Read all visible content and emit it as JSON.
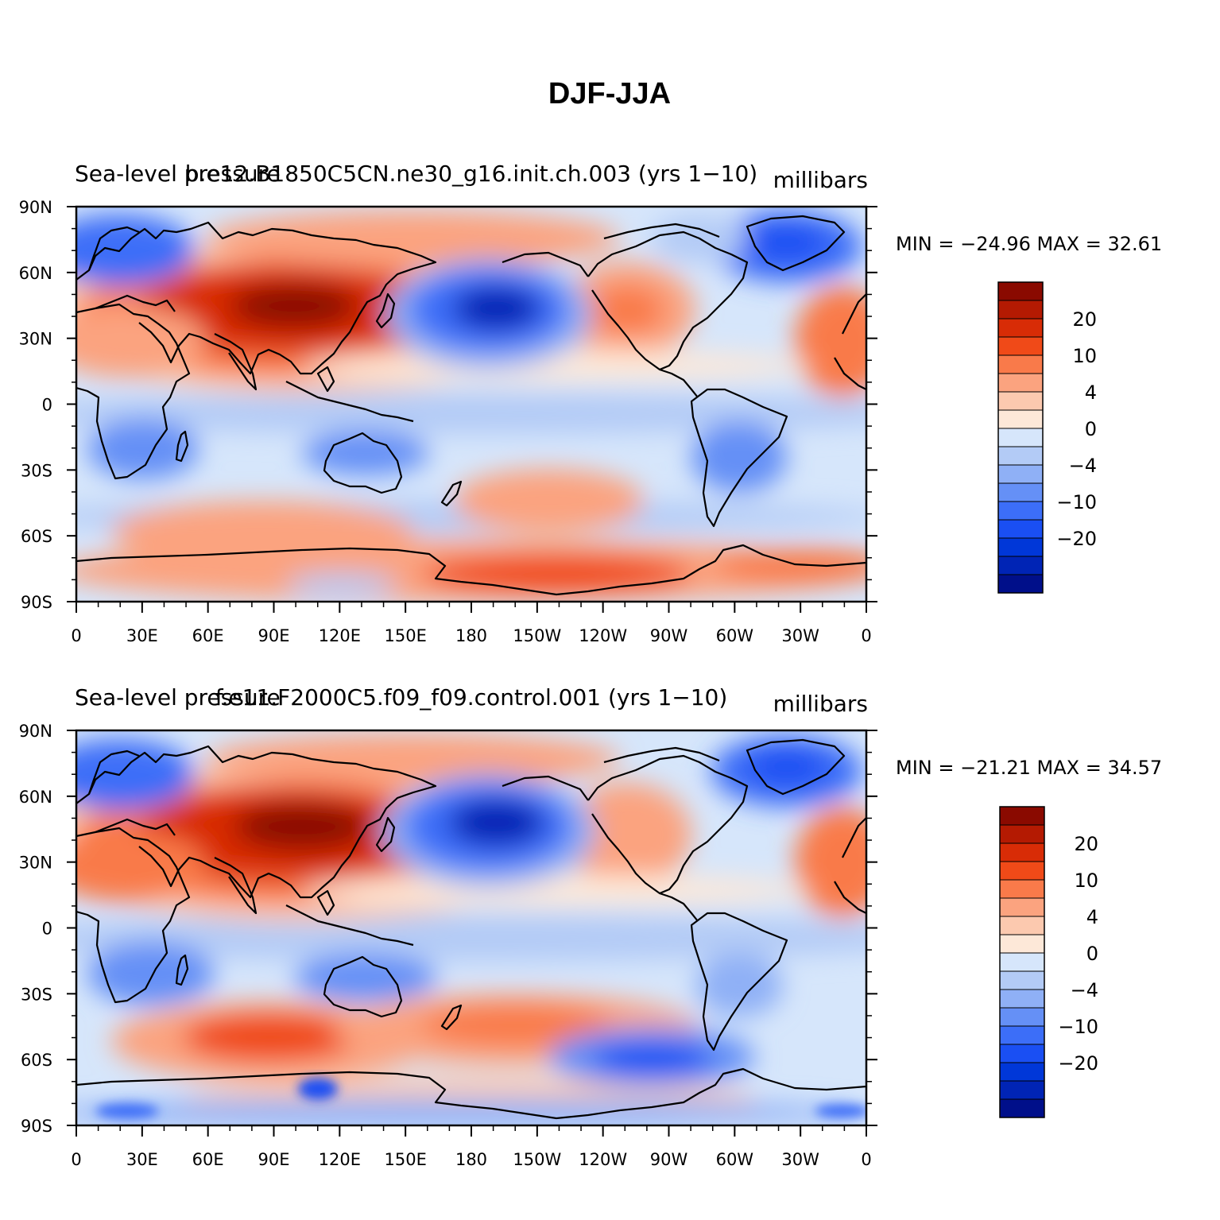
{
  "figure": {
    "title": "DJF-JJA"
  },
  "colormap": {
    "colors": [
      "#000f8a",
      "#0024b5",
      "#0037d8",
      "#1a4ff3",
      "#3c6ef8",
      "#6590f6",
      "#8fb0f6",
      "#b3cbf6",
      "#d6e6fb",
      "#fde8d8",
      "#fcc9af",
      "#fba37f",
      "#f97a4a",
      "#f04a18",
      "#d82c06",
      "#b41a02",
      "#8a0a00"
    ],
    "labels": [
      "20",
      "10",
      "4",
      "0",
      "−4",
      "−10",
      "−20"
    ]
  },
  "panels": [
    {
      "id": "top",
      "title_left": "Sea-level pressure",
      "title_center": "b.e12.B1850C5CN.ne30_g16.init.ch.003 (yrs 1−10)",
      "units": "millibars",
      "stats": "MIN = −24.96  MAX =   32.61",
      "min": -24.96,
      "max": 32.61
    },
    {
      "id": "bottom",
      "title_left": "Sea-level pressure",
      "title_center": "f.e11.F2000C5.f09_f09.control.001 (yrs 1−10)",
      "units": "millibars",
      "stats": "MIN = −21.21  MAX =   34.57",
      "min": -21.21,
      "max": 34.57
    }
  ],
  "axes": {
    "y_labels": [
      "90N",
      "60N",
      "30N",
      "0",
      "30S",
      "60S",
      "90S"
    ],
    "x_labels": [
      "0",
      "30E",
      "60E",
      "90E",
      "120E",
      "150E",
      "180",
      "150W",
      "120W",
      "90W",
      "60W",
      "30W",
      "0"
    ]
  }
}
